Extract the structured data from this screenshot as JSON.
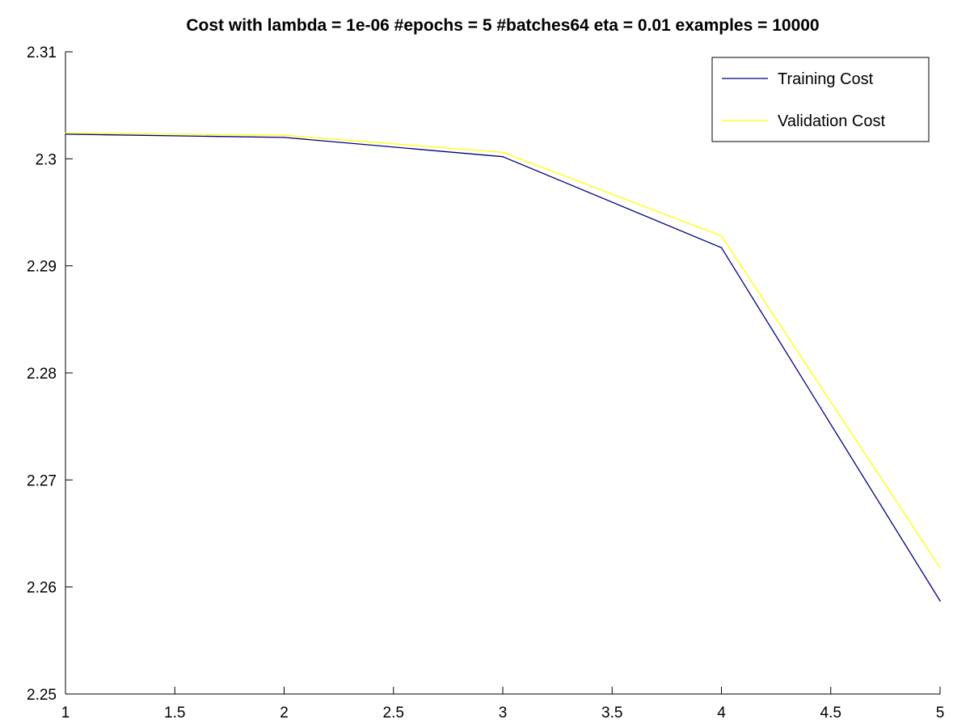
{
  "chart_data": {
    "type": "line",
    "title": "Cost with lambda = 1e-06 #epochs = 5 #batches64 eta = 0.01 examples = 10000",
    "xlabel": "",
    "ylabel": "",
    "xlim": [
      1,
      5
    ],
    "ylim": [
      2.25,
      2.31
    ],
    "xticks": [
      1,
      1.5,
      2,
      2.5,
      3,
      3.5,
      4,
      4.5,
      5
    ],
    "xtick_labels": [
      "1",
      "1.5",
      "2",
      "2.5",
      "3",
      "3.5",
      "4",
      "4.5",
      "5"
    ],
    "yticks": [
      2.25,
      2.26,
      2.27,
      2.28,
      2.29,
      2.3,
      2.31
    ],
    "ytick_labels": [
      "2.25",
      "2.26",
      "2.27",
      "2.28",
      "2.29",
      "2.3",
      "2.31"
    ],
    "grid": false,
    "legend_position": "top-right",
    "x": [
      1,
      2,
      3,
      4,
      5
    ],
    "series": [
      {
        "name": "Training Cost",
        "color": "#00007f",
        "values": [
          2.3023,
          2.302,
          2.3002,
          2.2917,
          2.2587
        ]
      },
      {
        "name": "Validation Cost",
        "color": "#ffff00",
        "values": [
          2.3024,
          2.3022,
          2.3006,
          2.2928,
          2.2618
        ]
      }
    ]
  }
}
